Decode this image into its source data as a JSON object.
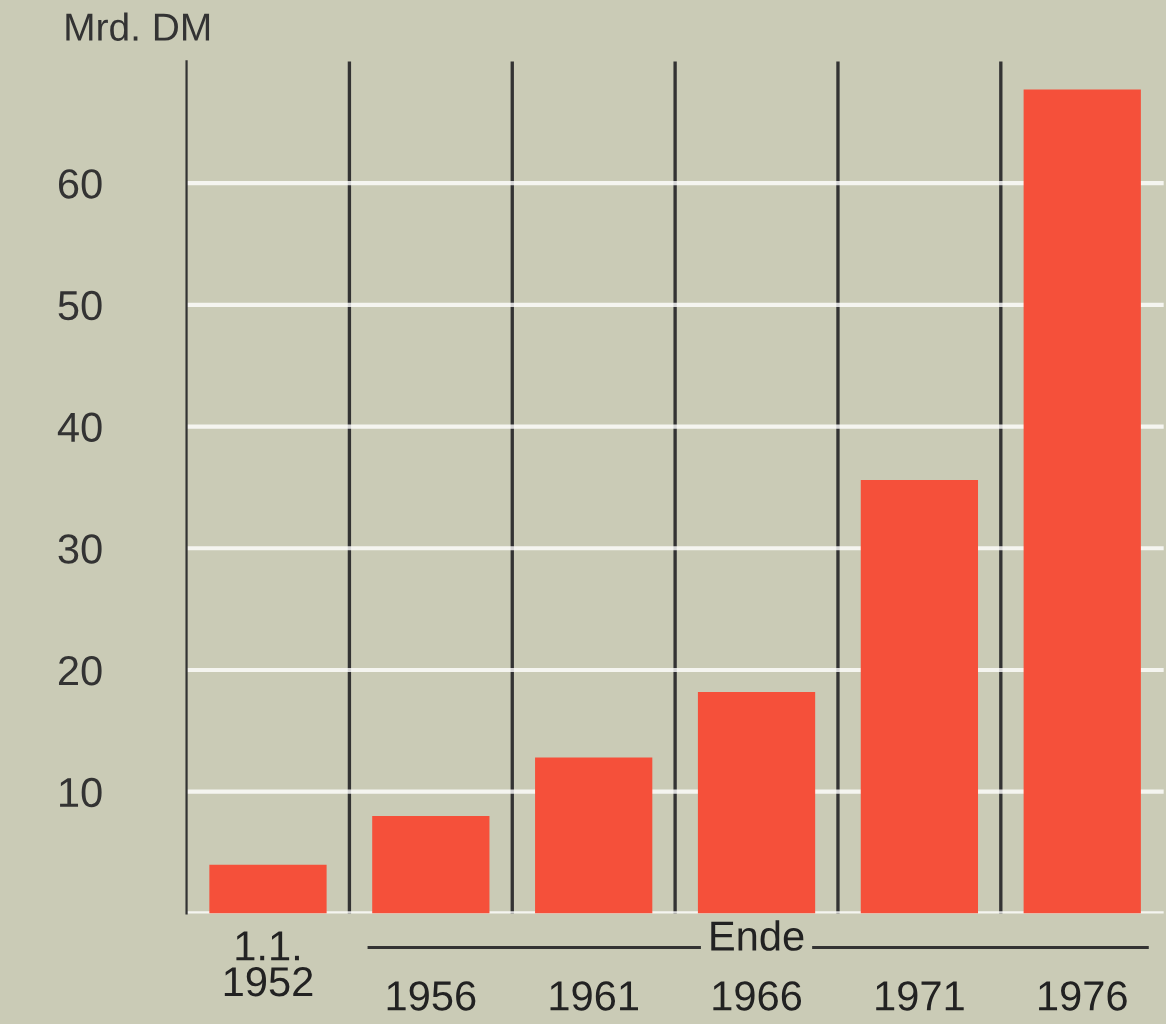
{
  "chart_data": {
    "type": "bar",
    "ylabel": "Mrd. DM",
    "categories": [
      "1.1.\n1952",
      "1956",
      "1961",
      "1966",
      "1971",
      "1976"
    ],
    "values": [
      4.0,
      8.0,
      12.8,
      18.2,
      35.6,
      67.7
    ],
    "color": "#f5503a",
    "ylim": [
      0,
      70
    ],
    "yticks": [
      {
        "value": 0,
        "label": null
      },
      10,
      20,
      30,
      40,
      50,
      60
    ],
    "grid": true,
    "annotations": [
      "Ende"
    ]
  }
}
